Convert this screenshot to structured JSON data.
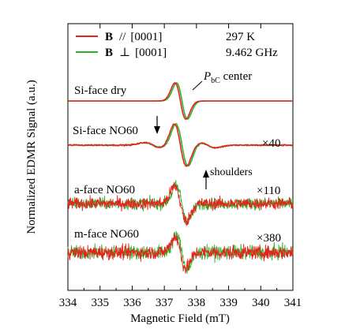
{
  "chart_data": {
    "type": "line",
    "xlabel": "Magnetic Field (mT)",
    "ylabel": "Normalized EDMR Signal (a.u.)",
    "xlim": [
      334,
      341
    ],
    "xticks": [
      "334",
      "335",
      "336",
      "337",
      "338",
      "339",
      "340",
      "341"
    ],
    "grid": false,
    "legend_position": "top-left",
    "legend": [
      {
        "bold": "B",
        "symbol": "//",
        "rest": "[0001]",
        "color": "#e8221c"
      },
      {
        "bold": "B",
        "symbol": "⊥",
        "rest": "[0001]",
        "color": "#2bb32b"
      }
    ],
    "conditions": [
      "297 K",
      "9.462 GHz"
    ],
    "colors": {
      "parallel": "#e8221c",
      "perpendicular": "#2bb32b"
    },
    "center_field_mT": 337.5,
    "series": [
      {
        "name": "Si-face dry",
        "scale": "",
        "noise": 0.0,
        "peak_to_peak": 1.0
      },
      {
        "name": "Si-face NO60",
        "scale": "×40",
        "noise": 0.03,
        "peak_to_peak": 1.0
      },
      {
        "name": "a-face NO60",
        "scale": "×110",
        "noise": 0.35,
        "peak_to_peak": 1.0
      },
      {
        "name": "m-face NO60",
        "scale": "×380",
        "noise": 0.45,
        "peak_to_peak": 1.0
      }
    ],
    "annotations": {
      "center_main": "P",
      "center_sub": "bC",
      "center_tail": " center",
      "shoulders": "shoulders"
    }
  }
}
